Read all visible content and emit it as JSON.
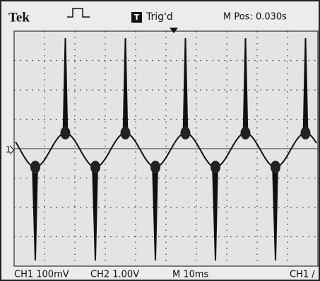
{
  "header": {
    "brand": "Tek",
    "trigger_icon": "T",
    "status": "Trig'd",
    "position": "M Pos: 0.030s"
  },
  "channel_marker": "1",
  "footer": {
    "ch1": "CH1 100mV",
    "ch2": "CH2 1.00V",
    "timebase": "M 10ms",
    "trigger": "CH1 /"
  }
}
